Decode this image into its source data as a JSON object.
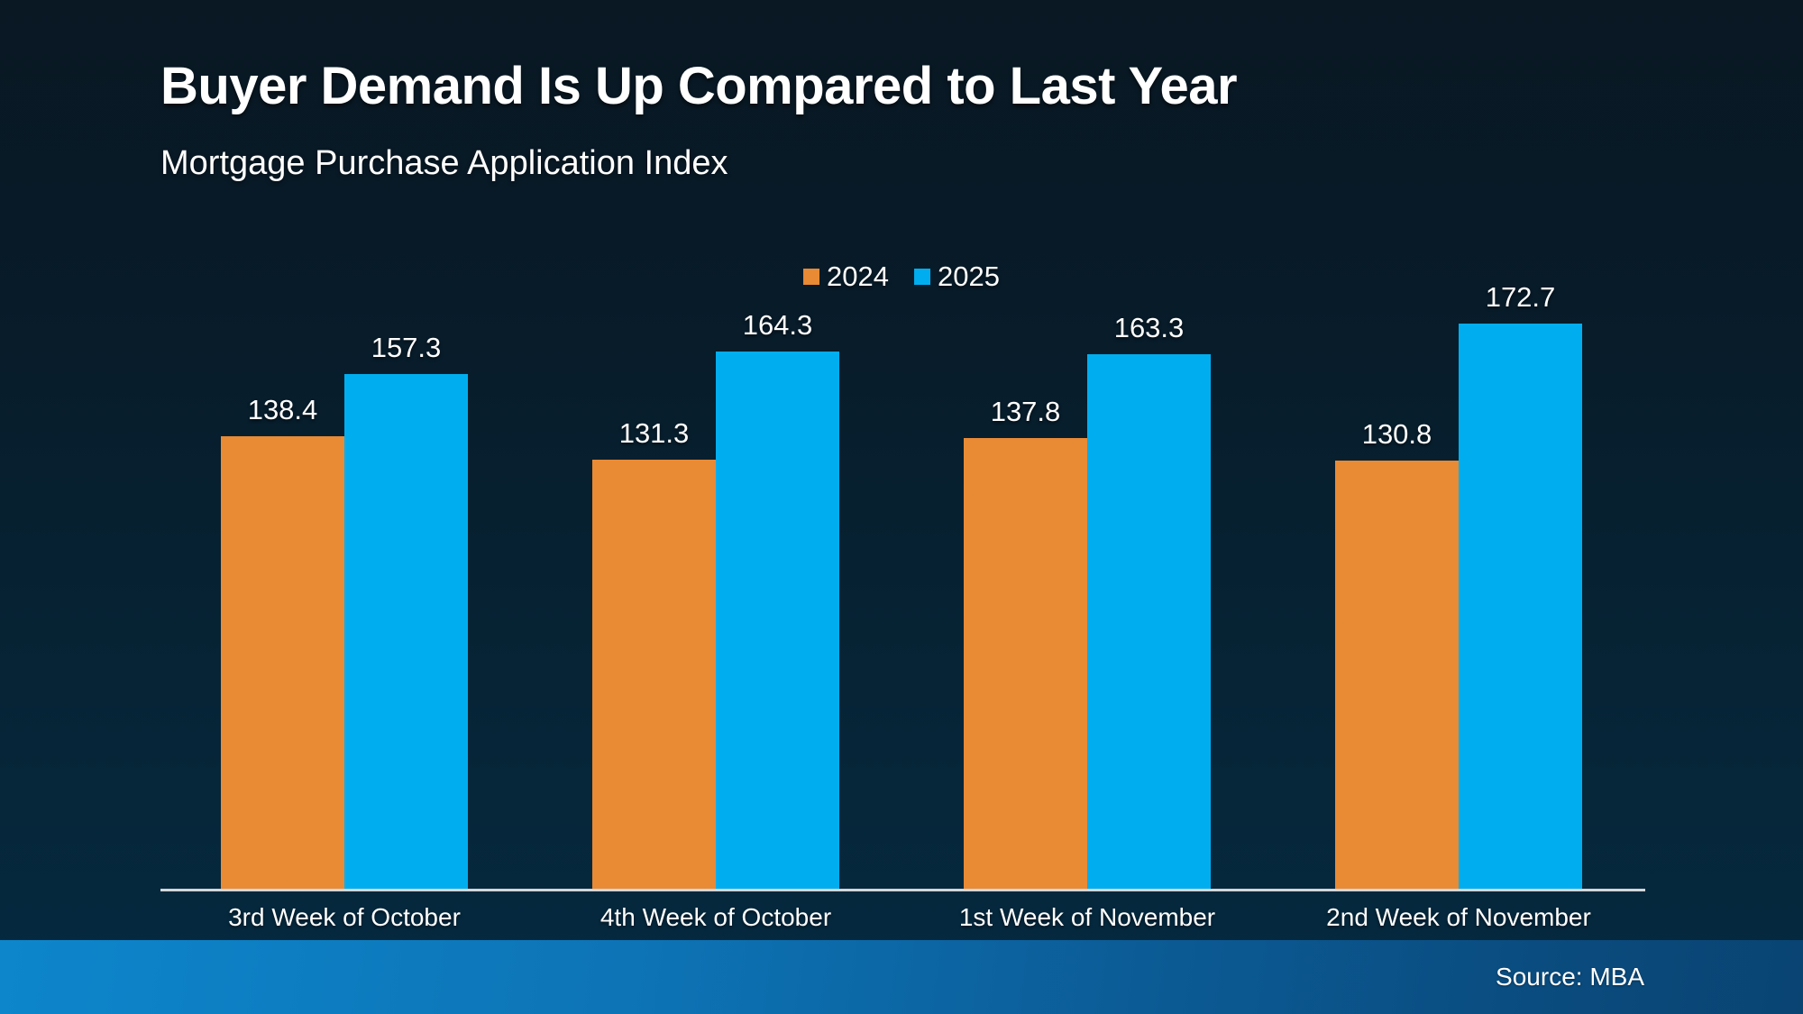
{
  "chart_data": {
    "type": "bar",
    "title": "Buyer Demand Is Up Compared to Last Year",
    "subtitle": "Mortgage Purchase Application Index",
    "categories": [
      "3rd Week of October",
      "4th Week of October",
      "1st Week of November",
      "2nd Week of November"
    ],
    "series": [
      {
        "name": "2024",
        "color": "#e98a35",
        "values": [
          138.4,
          131.3,
          137.8,
          130.8
        ]
      },
      {
        "name": "2025",
        "color": "#00aeef",
        "values": [
          157.3,
          164.3,
          163.3,
          172.7
        ]
      }
    ],
    "xlabel": "",
    "ylabel": "Mortgage Purchase Application Index",
    "ylim": [
      0,
      180
    ],
    "grid": false,
    "legend_position": "top-center",
    "value_labels": true
  },
  "footer": {
    "source_label": "Source: MBA"
  },
  "colors": {
    "background_top": "#091823",
    "background_bottom": "#052a41",
    "axis_line": "#d2d6d9",
    "footer_gradient_left": "#0d86cc",
    "footer_gradient_right": "#094473",
    "text": "#ffffff"
  }
}
